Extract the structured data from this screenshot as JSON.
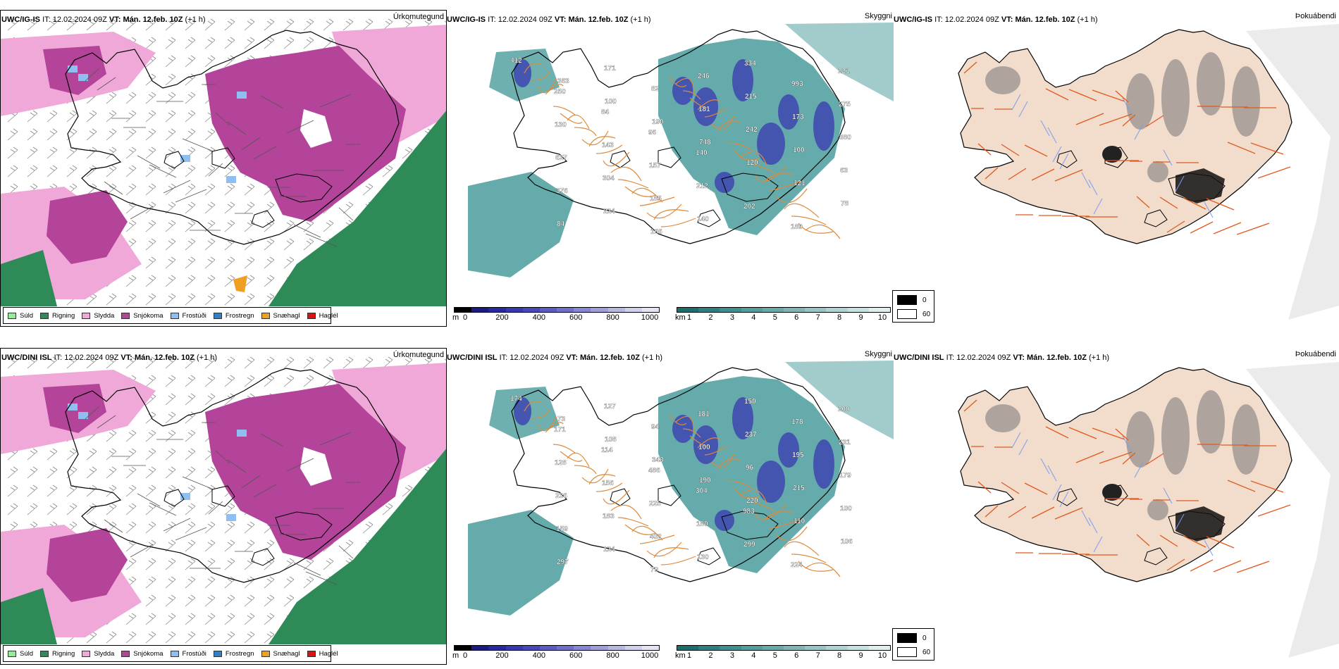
{
  "rows": [
    {
      "model": "UWC/IG-IS",
      "it_label": "IT:",
      "it_value": "12.02.2024 09Z",
      "vt_label": "VT:",
      "vt_value": "Mán. 12.feb. 10Z",
      "lead": "(+1 h)",
      "panels": {
        "precip": "Úrkomutegund",
        "cloud": "Skyggni",
        "fog": "Þokuábendi"
      },
      "cloud_labels": [
        "412",
        "363",
        "100",
        "190",
        "748",
        "120",
        "121",
        "78",
        "84",
        "171",
        "82",
        "181",
        "242",
        "100",
        "63",
        "376",
        "224",
        "166",
        "246",
        "215",
        "173",
        "380",
        "627",
        "304",
        "185",
        "140",
        "334",
        "993",
        "275",
        "130",
        "143",
        "157",
        "212",
        "202",
        "189",
        "221",
        "250",
        "84",
        "96",
        "140"
      ]
    },
    {
      "model": "UWC/DINI ISL",
      "it_label": "IT:",
      "it_value": "12.02.2024 09Z",
      "vt_label": "VT:",
      "vt_value": "Mán. 12.feb. 10Z",
      "lead": "(+1 h)",
      "panels": {
        "precip": "Úrkomutegund",
        "cloud": "Skyggni",
        "fog": "Þokuábendi"
      },
      "cloud_labels": [
        "174",
        "73",
        "108",
        "343",
        "190",
        "220",
        "110",
        "106",
        "297",
        "127",
        "94",
        "100",
        "96",
        "215",
        "100",
        "159",
        "124",
        "79",
        "181",
        "237",
        "195",
        "179",
        "236",
        "183",
        "402",
        "130",
        "150",
        "178",
        "231",
        "128",
        "156",
        "225",
        "180",
        "299",
        "224",
        "200",
        "171",
        "114",
        "486",
        "304",
        "983"
      ]
    }
  ],
  "precip_legend": [
    {
      "label": "Súld",
      "color": "#8ff08f"
    },
    {
      "label": "Rigning",
      "color": "#2e8b57"
    },
    {
      "label": "Slydda",
      "color": "#f0a8d8"
    },
    {
      "label": "Snjókoma",
      "color": "#b4449a"
    },
    {
      "label": "Frostúði",
      "color": "#8fbff0"
    },
    {
      "label": "Frostregn",
      "color": "#2e7fd0"
    },
    {
      "label": "Snæhagl",
      "color": "#f0a020"
    },
    {
      "label": "Haglél",
      "color": "#e01010"
    }
  ],
  "ceiling_bar": {
    "unit": "m",
    "ticks": [
      "0",
      "200",
      "400",
      "600",
      "800",
      "1000"
    ],
    "colors": [
      "#000000",
      "#1a1a80",
      "#2828a0",
      "#3838b0",
      "#4848b8",
      "#5c5cc0",
      "#7070c8",
      "#8888d0",
      "#a0a0d8",
      "#b8b8e0",
      "#d0d0ea",
      "#e4e4f2"
    ]
  },
  "visibility_bar": {
    "unit": "km",
    "ticks": [
      "1",
      "2",
      "3",
      "4",
      "5",
      "6",
      "7",
      "8",
      "9",
      "10"
    ],
    "colors": [
      "#1f6e6e",
      "#2f7f7f",
      "#3f8f8f",
      "#559c9c",
      "#6aa9a9",
      "#80b6b6",
      "#97c4c4",
      "#afd2d2",
      "#c7e0e0",
      "#e0eeee"
    ]
  },
  "fog_legend": [
    {
      "label": "0",
      "color": "#000000"
    },
    {
      "label": "60",
      "color": "#ffffff"
    }
  ],
  "colors": {
    "snow": "#b4449a",
    "sleet": "#f0a8d8",
    "rain": "#2e8b57",
    "teal": "#4a9c9c",
    "land_fog": "#f2dccc",
    "roads": "#e05a1e",
    "roads_cloud": "#e0893a",
    "rivers": "#7a9ef0"
  }
}
